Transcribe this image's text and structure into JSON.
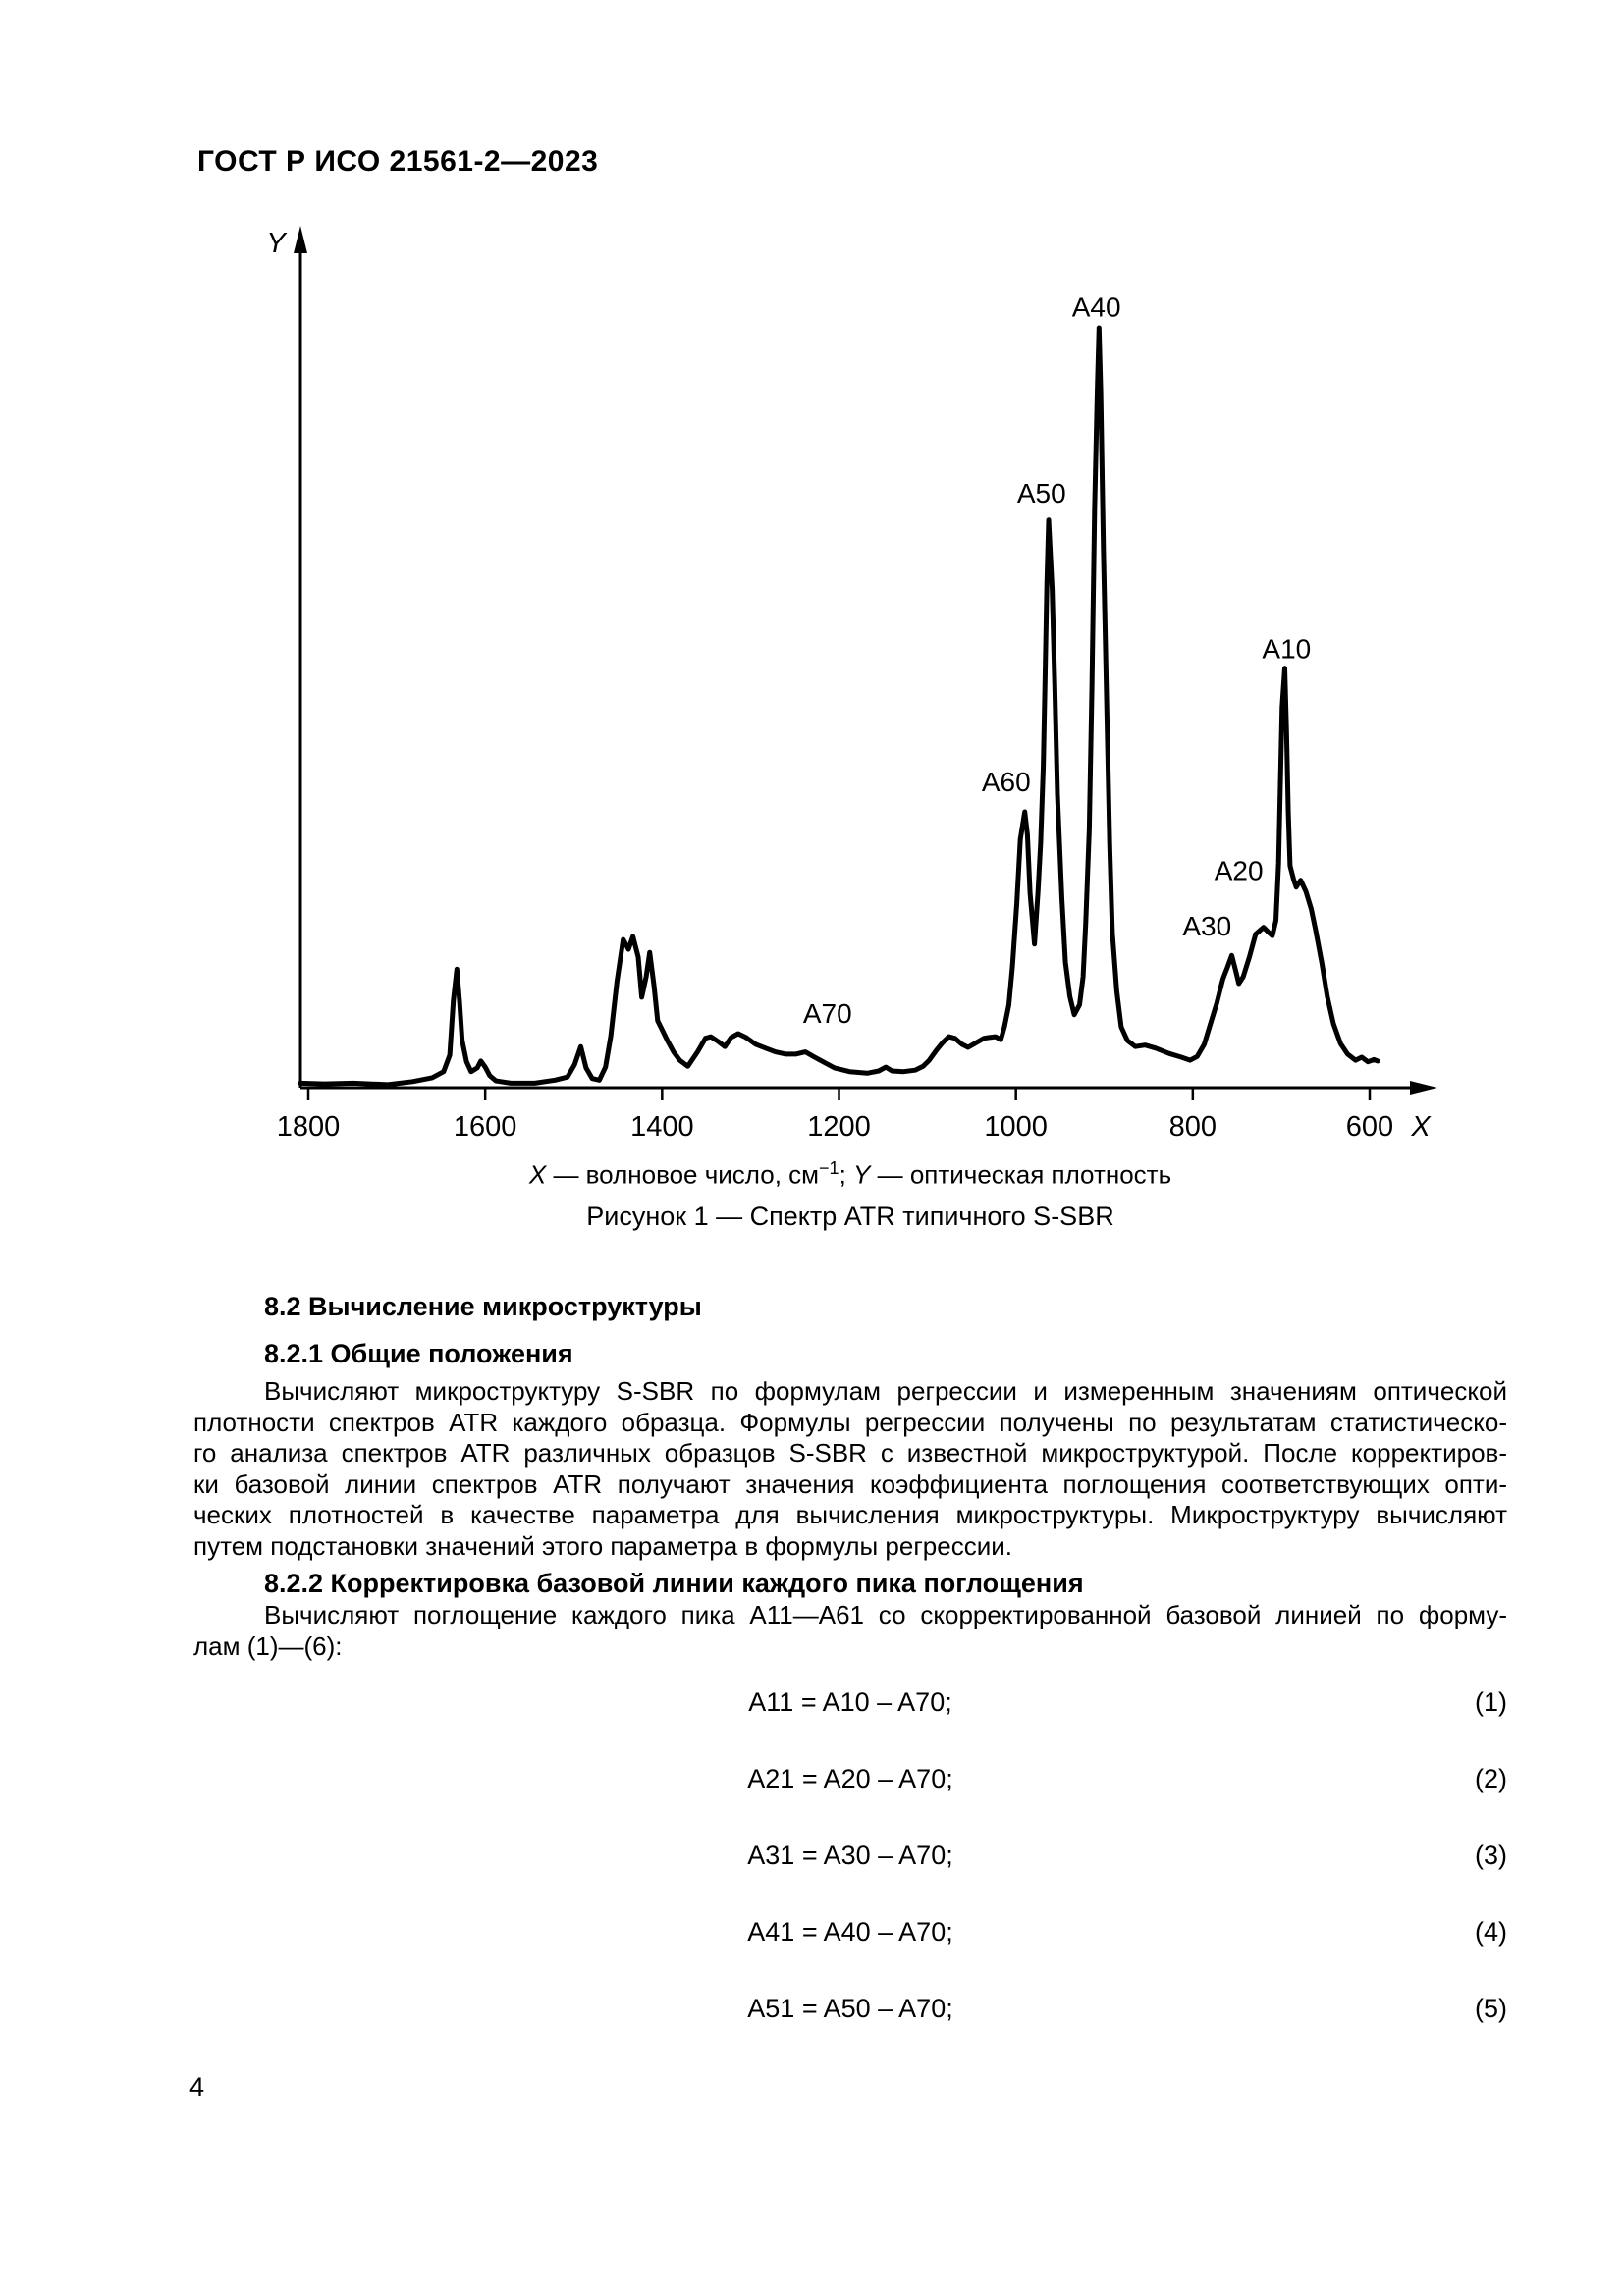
{
  "page": {
    "header": "ГОСТ Р ИСО 21561-2—2023",
    "page_number": "4"
  },
  "figure": {
    "legend": {
      "x_var": "X",
      "x_text": " — волновое число, см",
      "x_sup": "−1",
      "sep": "; ",
      "y_var": "Y",
      "y_text": " — оптическая плотность"
    },
    "caption": "Рисунок 1 — Спектр ATR типичного S-SBR"
  },
  "chart_data": {
    "type": "line",
    "title": "Спектр ATR типичного S-SBR",
    "xlabel": "X",
    "x_unit": "волновое число, см−1",
    "ylabel": "Y",
    "y_unit": "оптическая плотность",
    "x_axis": {
      "ticks": [
        1800,
        1600,
        1400,
        1200,
        1000,
        800,
        600
      ],
      "reversed": true,
      "range": [
        1809,
        560
      ]
    },
    "y_axis": {
      "range": [
        0,
        1.13
      ],
      "ticks": []
    },
    "grid": false,
    "legend_position": "none",
    "peak_annotations": [
      {
        "label": "A10",
        "peak_wavenumber": 696,
        "label_pos": [
          694,
          0.578
        ]
      },
      {
        "label": "A20",
        "peak_wavenumber": 720,
        "label_pos": [
          748,
          0.286
        ]
      },
      {
        "label": "A30",
        "peak_wavenumber": 756,
        "label_pos": [
          784,
          0.213
        ]
      },
      {
        "label": "A40",
        "peak_wavenumber": 906,
        "label_pos": [
          909,
          1.028
        ]
      },
      {
        "label": "A50",
        "peak_wavenumber": 963,
        "label_pos": [
          971,
          0.783
        ]
      },
      {
        "label": "A60",
        "peak_wavenumber": 990,
        "label_pos": [
          1011,
          0.403
        ]
      },
      {
        "label": "A70",
        "label_pos": [
          1213,
          0.098
        ]
      }
    ],
    "curve": [
      [
        1809,
        0.006
      ],
      [
        1782,
        0.005
      ],
      [
        1749,
        0.006
      ],
      [
        1710,
        0.004
      ],
      [
        1682,
        0.008
      ],
      [
        1660,
        0.013
      ],
      [
        1647,
        0.021
      ],
      [
        1640,
        0.043
      ],
      [
        1636,
        0.114
      ],
      [
        1632,
        0.156
      ],
      [
        1629,
        0.114
      ],
      [
        1626,
        0.062
      ],
      [
        1621,
        0.034
      ],
      [
        1616,
        0.021
      ],
      [
        1609,
        0.026
      ],
      [
        1605,
        0.035
      ],
      [
        1600,
        0.027
      ],
      [
        1595,
        0.016
      ],
      [
        1588,
        0.009
      ],
      [
        1571,
        0.006
      ],
      [
        1544,
        0.006
      ],
      [
        1521,
        0.01
      ],
      [
        1507,
        0.014
      ],
      [
        1499,
        0.03
      ],
      [
        1492,
        0.054
      ],
      [
        1486,
        0.026
      ],
      [
        1479,
        0.012
      ],
      [
        1471,
        0.01
      ],
      [
        1464,
        0.027
      ],
      [
        1458,
        0.068
      ],
      [
        1451,
        0.14
      ],
      [
        1444,
        0.195
      ],
      [
        1438,
        0.182
      ],
      [
        1433,
        0.199
      ],
      [
        1427,
        0.172
      ],
      [
        1423,
        0.119
      ],
      [
        1418,
        0.146
      ],
      [
        1414,
        0.178
      ],
      [
        1409,
        0.133
      ],
      [
        1405,
        0.088
      ],
      [
        1399,
        0.074
      ],
      [
        1394,
        0.062
      ],
      [
        1387,
        0.047
      ],
      [
        1380,
        0.036
      ],
      [
        1371,
        0.028
      ],
      [
        1360,
        0.047
      ],
      [
        1351,
        0.065
      ],
      [
        1345,
        0.067
      ],
      [
        1337,
        0.061
      ],
      [
        1329,
        0.054
      ],
      [
        1322,
        0.066
      ],
      [
        1314,
        0.071
      ],
      [
        1305,
        0.066
      ],
      [
        1294,
        0.057
      ],
      [
        1283,
        0.052
      ],
      [
        1272,
        0.047
      ],
      [
        1260,
        0.044
      ],
      [
        1249,
        0.044
      ],
      [
        1238,
        0.047
      ],
      [
        1229,
        0.041
      ],
      [
        1218,
        0.034
      ],
      [
        1205,
        0.026
      ],
      [
        1188,
        0.021
      ],
      [
        1168,
        0.019
      ],
      [
        1155,
        0.022
      ],
      [
        1147,
        0.027
      ],
      [
        1140,
        0.022
      ],
      [
        1127,
        0.021
      ],
      [
        1114,
        0.023
      ],
      [
        1105,
        0.028
      ],
      [
        1098,
        0.036
      ],
      [
        1090,
        0.049
      ],
      [
        1083,
        0.059
      ],
      [
        1076,
        0.067
      ],
      [
        1069,
        0.065
      ],
      [
        1061,
        0.057
      ],
      [
        1054,
        0.053
      ],
      [
        1045,
        0.059
      ],
      [
        1036,
        0.065
      ],
      [
        1030,
        0.066
      ],
      [
        1023,
        0.067
      ],
      [
        1017,
        0.063
      ],
      [
        1013,
        0.08
      ],
      [
        1008,
        0.109
      ],
      [
        1004,
        0.159
      ],
      [
        999,
        0.243
      ],
      [
        995,
        0.327
      ],
      [
        990,
        0.363
      ],
      [
        987,
        0.333
      ],
      [
        984,
        0.256
      ],
      [
        979,
        0.189
      ],
      [
        975,
        0.258
      ],
      [
        972,
        0.323
      ],
      [
        969,
        0.424
      ],
      [
        967,
        0.54
      ],
      [
        965,
        0.663
      ],
      [
        963,
        0.747
      ],
      [
        959,
        0.656
      ],
      [
        956,
        0.527
      ],
      [
        953,
        0.385
      ],
      [
        948,
        0.249
      ],
      [
        944,
        0.165
      ],
      [
        939,
        0.12
      ],
      [
        934,
        0.096
      ],
      [
        928,
        0.109
      ],
      [
        924,
        0.146
      ],
      [
        921,
        0.217
      ],
      [
        917,
        0.34
      ],
      [
        914,
        0.527
      ],
      [
        911,
        0.76
      ],
      [
        908,
        0.915
      ],
      [
        906,
        1.0
      ],
      [
        904,
        0.915
      ],
      [
        901,
        0.708
      ],
      [
        897,
        0.488
      ],
      [
        894,
        0.32
      ],
      [
        891,
        0.204
      ],
      [
        886,
        0.127
      ],
      [
        881,
        0.08
      ],
      [
        874,
        0.062
      ],
      [
        865,
        0.054
      ],
      [
        854,
        0.056
      ],
      [
        842,
        0.052
      ],
      [
        827,
        0.045
      ],
      [
        813,
        0.04
      ],
      [
        803,
        0.036
      ],
      [
        795,
        0.041
      ],
      [
        787,
        0.057
      ],
      [
        780,
        0.084
      ],
      [
        773,
        0.111
      ],
      [
        766,
        0.143
      ],
      [
        761,
        0.158
      ],
      [
        756,
        0.174
      ],
      [
        752,
        0.156
      ],
      [
        748,
        0.137
      ],
      [
        743,
        0.146
      ],
      [
        736,
        0.172
      ],
      [
        729,
        0.202
      ],
      [
        720,
        0.211
      ],
      [
        714,
        0.204
      ],
      [
        710,
        0.2
      ],
      [
        706,
        0.22
      ],
      [
        703,
        0.295
      ],
      [
        701,
        0.398
      ],
      [
        699,
        0.501
      ],
      [
        696,
        0.552
      ],
      [
        694,
        0.469
      ],
      [
        692,
        0.362
      ],
      [
        690,
        0.292
      ],
      [
        686,
        0.274
      ],
      [
        683,
        0.264
      ],
      [
        678,
        0.273
      ],
      [
        672,
        0.258
      ],
      [
        666,
        0.235
      ],
      [
        661,
        0.207
      ],
      [
        654,
        0.163
      ],
      [
        648,
        0.12
      ],
      [
        641,
        0.084
      ],
      [
        633,
        0.058
      ],
      [
        625,
        0.044
      ],
      [
        616,
        0.036
      ],
      [
        609,
        0.04
      ],
      [
        602,
        0.034
      ],
      [
        595,
        0.037
      ],
      [
        591,
        0.035
      ]
    ]
  },
  "sections": {
    "h82": "8.2 Вычисление микроструктуры",
    "h821": "8.2.1 Общие положения",
    "h822": "8.2.2 Корректировка базовой линии каждого пика поглощения",
    "para1_lines": [
      {
        "text": "Вычисляют микроструктуру S-SBR по формулам регрессии и измеренным значениям оптической",
        "indent": true,
        "justify": true
      },
      {
        "text": "плотности спектров ATR каждого образца. Формулы регрессии получены по результатам статистическо-",
        "indent": false,
        "justify": true
      },
      {
        "text": "го анализа спектров ATR различных образцов S-SBR с известной микроструктурой. После корректиров-",
        "indent": false,
        "justify": true
      },
      {
        "text": "ки базовой линии спектров ATR получают значения коэффициента поглощения соответствующих опти-",
        "indent": false,
        "justify": true
      },
      {
        "text": "ческих плотностей в качестве параметра для вычисления микроструктуры. Микроструктуру вычисляют",
        "indent": false,
        "justify": true
      },
      {
        "text": "путем подстановки значений этого параметра в формулы регрессии.",
        "indent": false,
        "justify": false
      }
    ],
    "para2_lines": [
      {
        "text": "Вычисляют поглощение каждого пика A11—A61 со скорректированной базовой линией по форму-",
        "indent": true,
        "justify": true
      },
      {
        "text": "лам (1)—(6):",
        "indent": false,
        "justify": false
      }
    ]
  },
  "formulas": [
    {
      "expr": "A11 = A10 – A70;",
      "num": "(1)"
    },
    {
      "expr": "A21 = A20 – A70;",
      "num": "(2)"
    },
    {
      "expr": "A31 = A30 – A70;",
      "num": "(3)"
    },
    {
      "expr": "A41 = A40 – A70;",
      "num": "(4)"
    },
    {
      "expr": "A51 = A50 – A70;",
      "num": "(5)"
    }
  ]
}
